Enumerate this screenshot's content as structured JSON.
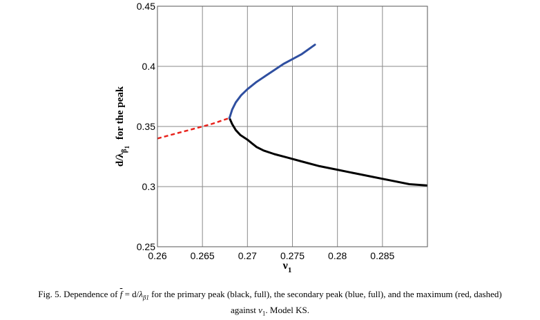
{
  "chart_data": {
    "type": "line",
    "title": "",
    "xlabel": "ν",
    "xlabel_sub": "1",
    "ylabel_parts": {
      "a": "d/λ",
      "b": "β",
      "c": "1",
      "d": "for the peak"
    },
    "xlim": [
      0.26,
      0.29
    ],
    "ylim": [
      0.25,
      0.45
    ],
    "grid": true,
    "x_ticks": [
      0.26,
      0.265,
      0.27,
      0.275,
      0.28,
      0.285
    ],
    "x_tick_labels": [
      "0.26",
      "0.265",
      "0.27",
      "0.275",
      "0.28",
      "0.285"
    ],
    "y_ticks": [
      0.25,
      0.3,
      0.35,
      0.4,
      0.45
    ],
    "y_tick_labels": [
      "0.25",
      "0.3",
      "0.35",
      "0.4",
      "0.45"
    ],
    "series": [
      {
        "name": "primary peak",
        "style": "solid",
        "color": "#000000",
        "points": [
          [
            0.268,
            0.357
          ],
          [
            0.2683,
            0.352
          ],
          [
            0.2687,
            0.347
          ],
          [
            0.2692,
            0.343
          ],
          [
            0.27,
            0.339
          ],
          [
            0.2705,
            0.336
          ],
          [
            0.271,
            0.333
          ],
          [
            0.2718,
            0.33
          ],
          [
            0.273,
            0.327
          ],
          [
            0.2745,
            0.324
          ],
          [
            0.276,
            0.321
          ],
          [
            0.278,
            0.317
          ],
          [
            0.28,
            0.314
          ],
          [
            0.282,
            0.311
          ],
          [
            0.284,
            0.308
          ],
          [
            0.286,
            0.305
          ],
          [
            0.288,
            0.302
          ],
          [
            0.2899,
            0.301
          ]
        ]
      },
      {
        "name": "secondary peak",
        "style": "solid",
        "color": "#2f4fa0",
        "points": [
          [
            0.268,
            0.357
          ],
          [
            0.2683,
            0.364
          ],
          [
            0.2687,
            0.37
          ],
          [
            0.2693,
            0.376
          ],
          [
            0.27,
            0.381
          ],
          [
            0.271,
            0.387
          ],
          [
            0.272,
            0.392
          ],
          [
            0.273,
            0.397
          ],
          [
            0.274,
            0.402
          ],
          [
            0.275,
            0.406
          ],
          [
            0.276,
            0.41
          ],
          [
            0.2775,
            0.418
          ]
        ]
      },
      {
        "name": "maximum",
        "style": "dashed",
        "color": "#e8231c",
        "points": [
          [
            0.26,
            0.34
          ],
          [
            0.262,
            0.344
          ],
          [
            0.264,
            0.348
          ],
          [
            0.266,
            0.352
          ],
          [
            0.268,
            0.357
          ]
        ]
      }
    ]
  },
  "caption": {
    "pre": "Fig. 5. Dependence of ",
    "f": "f",
    "eq": " = d/",
    "lambda": "λ",
    "lambda_sub": "β1",
    "mid": " for the primary peak (black, full), the secondary peak (blue, full), and the maximum (red, dashed)",
    "line2_pre": "against ",
    "nu": "ν",
    "nu_sub": "1",
    "line2_post": ". Model KS."
  }
}
